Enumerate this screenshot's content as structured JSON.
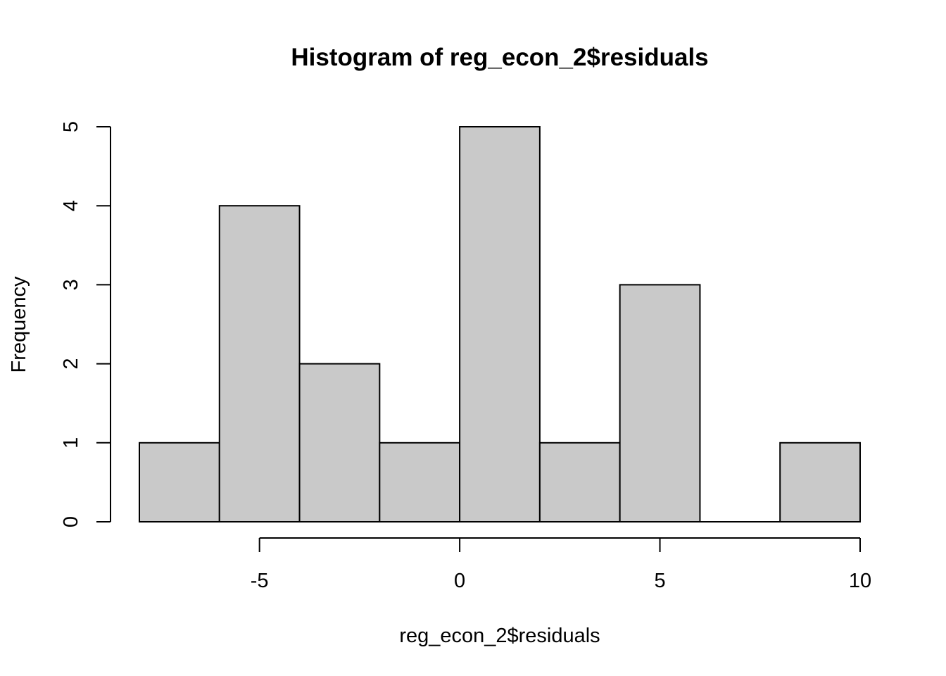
{
  "chart_data": {
    "type": "bar",
    "title": "Histogram of reg_econ_2$residuals",
    "xlabel": "reg_econ_2$residuals",
    "ylabel": "Frequency",
    "bins": [
      {
        "x0": -8,
        "x1": -6,
        "count": 1
      },
      {
        "x0": -6,
        "x1": -4,
        "count": 4
      },
      {
        "x0": -4,
        "x1": -2,
        "count": 2
      },
      {
        "x0": -2,
        "x1": 0,
        "count": 1
      },
      {
        "x0": 0,
        "x1": 2,
        "count": 5
      },
      {
        "x0": 2,
        "x1": 4,
        "count": 1
      },
      {
        "x0": 4,
        "x1": 6,
        "count": 3
      },
      {
        "x0": 6,
        "x1": 8,
        "count": 0
      },
      {
        "x0": 8,
        "x1": 10,
        "count": 1
      }
    ],
    "xlim": [
      -8,
      10
    ],
    "ylim": [
      0,
      5
    ],
    "x_ticks": [
      "-5",
      "0",
      "5",
      "10"
    ],
    "y_ticks": [
      "0",
      "1",
      "2",
      "3",
      "4",
      "5"
    ],
    "grid": false,
    "colors": {
      "bar_fill": "#c9c9c9",
      "bar_stroke": "#000000"
    }
  }
}
